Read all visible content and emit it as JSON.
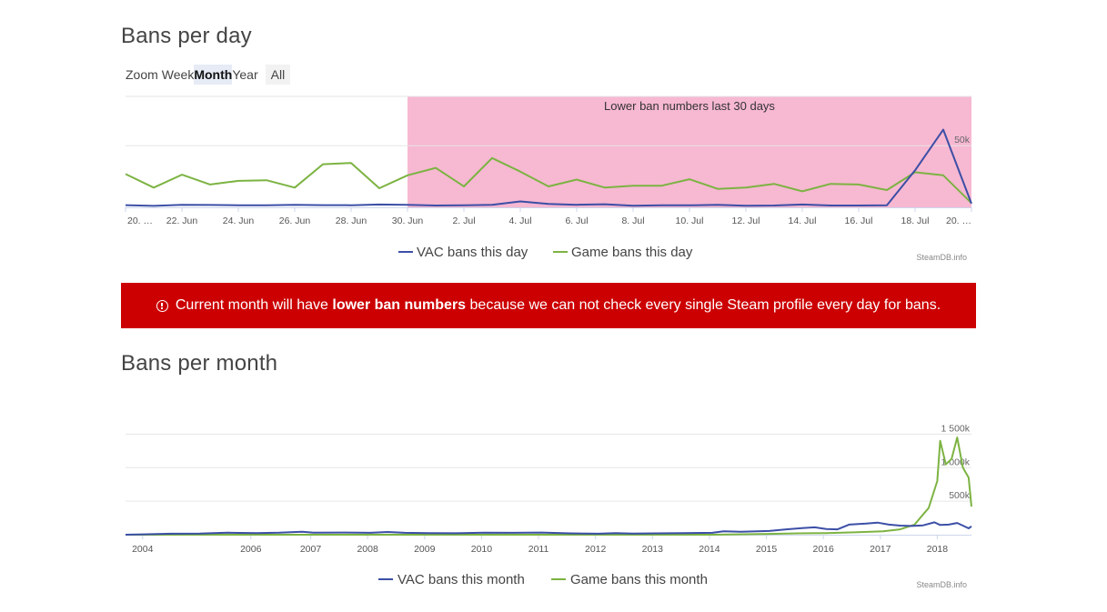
{
  "day_section": {
    "title": "Bans per day",
    "zoom": {
      "label": "Zoom",
      "options": [
        "Week",
        "Month",
        "Year",
        "All"
      ],
      "selected": "Month"
    }
  },
  "banner": {
    "text_before": "Current month will have ",
    "text_bold": "lower ban numbers",
    "text_after": " because we can not check every single Steam profile every day for bans.",
    "background": "#cc0000",
    "icon": "exclamation-circle-icon"
  },
  "month_section": {
    "title": "Bans per month"
  },
  "chart_data": [
    {
      "type": "line",
      "x_tick_labels": [
        "20. …",
        "22. Jun",
        "24. Jun",
        "26. Jun",
        "28. Jun",
        "30. Jun",
        "2. Jul",
        "4. Jul",
        "6. Jul",
        "8. Jul",
        "10. Jul",
        "12. Jul",
        "14. Jul",
        "16. Jul",
        "18. Jul",
        "20. …"
      ],
      "x_days": [
        20,
        21,
        22,
        23,
        24,
        25,
        26,
        27,
        28,
        29,
        30,
        31,
        32,
        33,
        34,
        35,
        36,
        37,
        38,
        39,
        40,
        41,
        42,
        43,
        44,
        45,
        46,
        47,
        48,
        49,
        50
      ],
      "y_tick_labels": [
        "50k"
      ],
      "ylim": [
        0,
        90000
      ],
      "grid": true,
      "legend_position": "bottom",
      "plot_band": {
        "from_day": 30,
        "to_day": 50,
        "label": "Lower ban numbers last 30 days",
        "color": "#f7b8d2"
      },
      "series": [
        {
          "name": "VAC bans this day",
          "color": "#3c4fa6",
          "values": [
            1800,
            1200,
            2000,
            1900,
            1700,
            1600,
            2000,
            1800,
            1700,
            2300,
            2000,
            1500,
            1600,
            2100,
            4800,
            2700,
            2100,
            2500,
            1300,
            1600,
            1600,
            2100,
            1300,
            1500,
            2300,
            1500,
            1500,
            1600,
            30000,
            63000,
            3000
          ]
        },
        {
          "name": "Game bans this day",
          "color": "#7cb342",
          "values": [
            27000,
            16000,
            26500,
            18500,
            21500,
            22000,
            16000,
            35000,
            36000,
            15500,
            26000,
            32000,
            17000,
            40000,
            29000,
            17000,
            22500,
            16000,
            17500,
            17500,
            22800,
            15000,
            16000,
            19000,
            13000,
            19000,
            18500,
            14000,
            28500,
            26000,
            3500
          ]
        }
      ],
      "credit": "SteamDB.info"
    },
    {
      "type": "line",
      "x_tick_labels": [
        "2004",
        "2006",
        "2007",
        "2008",
        "2009",
        "2010",
        "2011",
        "2012",
        "2013",
        "2014",
        "2015",
        "2016",
        "2017",
        "2018"
      ],
      "y_tick_labels": [
        "500k",
        "1 000k",
        "1 500k"
      ],
      "ylim": [
        0,
        1600000
      ],
      "xlim": [
        2003.7,
        2018.55
      ],
      "grid": true,
      "legend_position": "bottom",
      "series": [
        {
          "name": "VAC bans this month",
          "color": "#3c4fa6",
          "points": [
            [
              2003.7,
              0
            ],
            [
              2004.0,
              5000
            ],
            [
              2004.5,
              15000
            ],
            [
              2005.0,
              18000
            ],
            [
              2005.5,
              30000
            ],
            [
              2006.0,
              25000
            ],
            [
              2006.4,
              30000
            ],
            [
              2006.8,
              45000
            ],
            [
              2007.0,
              30000
            ],
            [
              2007.5,
              32000
            ],
            [
              2008.0,
              28000
            ],
            [
              2008.3,
              40000
            ],
            [
              2008.6,
              28000
            ],
            [
              2009.0,
              25000
            ],
            [
              2009.5,
              22000
            ],
            [
              2010.0,
              30000
            ],
            [
              2010.5,
              28000
            ],
            [
              2011.0,
              32000
            ],
            [
              2011.5,
              20000
            ],
            [
              2012.0,
              15000
            ],
            [
              2012.3,
              25000
            ],
            [
              2012.6,
              18000
            ],
            [
              2013.0,
              20000
            ],
            [
              2013.5,
              25000
            ],
            [
              2014.0,
              28000
            ],
            [
              2014.2,
              50000
            ],
            [
              2014.5,
              45000
            ],
            [
              2015.0,
              55000
            ],
            [
              2015.3,
              80000
            ],
            [
              2015.6,
              100000
            ],
            [
              2015.8,
              110000
            ],
            [
              2016.0,
              85000
            ],
            [
              2016.2,
              80000
            ],
            [
              2016.4,
              150000
            ],
            [
              2016.7,
              165000
            ],
            [
              2016.9,
              180000
            ],
            [
              2017.1,
              150000
            ],
            [
              2017.3,
              135000
            ],
            [
              2017.5,
              130000
            ],
            [
              2017.7,
              140000
            ],
            [
              2017.9,
              185000
            ],
            [
              2018.0,
              145000
            ],
            [
              2018.15,
              150000
            ],
            [
              2018.3,
              175000
            ],
            [
              2018.4,
              135000
            ],
            [
              2018.5,
              95000
            ],
            [
              2018.55,
              125000
            ]
          ]
        },
        {
          "name": "Game bans this month",
          "color": "#7cb342",
          "points": [
            [
              2003.7,
              0
            ],
            [
              2014.0,
              0
            ],
            [
              2015.0,
              12000
            ],
            [
              2015.5,
              20000
            ],
            [
              2016.0,
              25000
            ],
            [
              2016.5,
              35000
            ],
            [
              2017.0,
              50000
            ],
            [
              2017.3,
              80000
            ],
            [
              2017.55,
              150000
            ],
            [
              2017.8,
              400000
            ],
            [
              2017.95,
              800000
            ],
            [
              2018.0,
              1400000
            ],
            [
              2018.1,
              1050000
            ],
            [
              2018.2,
              1130000
            ],
            [
              2018.3,
              1450000
            ],
            [
              2018.4,
              1000000
            ],
            [
              2018.5,
              850000
            ],
            [
              2018.55,
              420000
            ]
          ]
        }
      ],
      "credit": "SteamDB.info"
    }
  ]
}
